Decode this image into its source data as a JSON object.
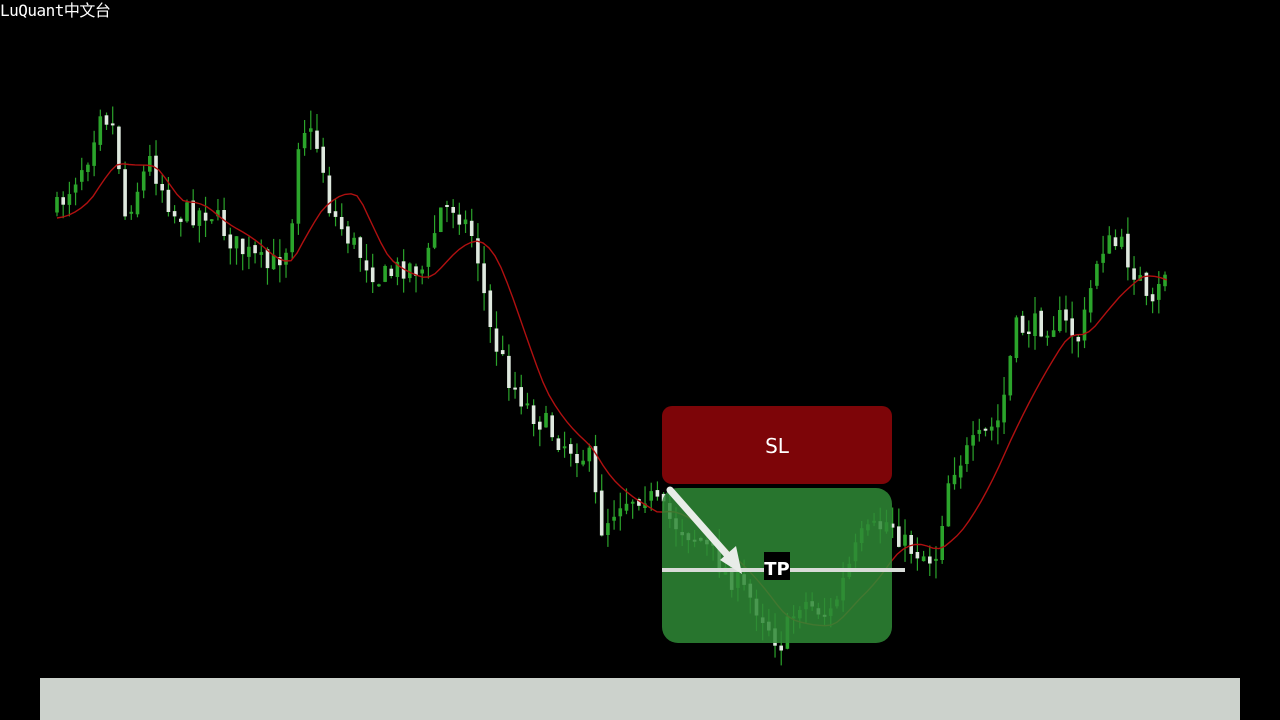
{
  "watermark": {
    "text": "LuQuant中文台"
  },
  "zones": {
    "stop_loss": {
      "label": "SL",
      "color": "#7d0508"
    },
    "take_profit": {
      "label": "TP",
      "color": "#2f8a36"
    }
  },
  "colors": {
    "background": "#000000",
    "bull_candle": "#2ba42b",
    "bear_candle": "#dfe9df",
    "moving_average": "#b01010",
    "arrow": "#e8ece8",
    "bottom_bar": "#ccd2cc"
  },
  "chart_data": {
    "type": "candlestick",
    "series": [
      {
        "name": "",
        "kind": "candles",
        "count": 180
      },
      {
        "name": "",
        "kind": "moving-average"
      }
    ]
  }
}
